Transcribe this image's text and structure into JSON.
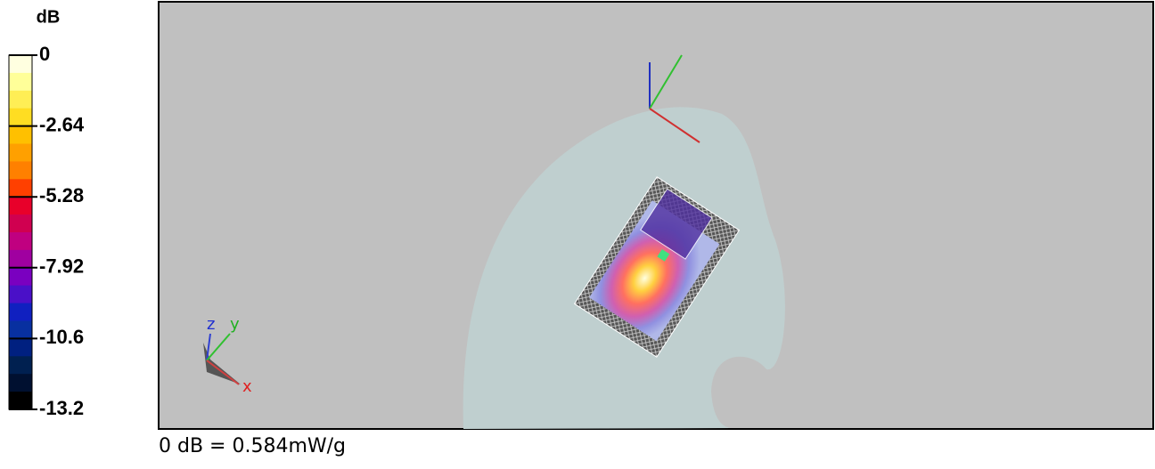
{
  "legend": {
    "title": "dB",
    "ticks": [
      "0",
      "-2.64",
      "-5.28",
      "-7.92",
      "-10.6",
      "-13.2"
    ]
  },
  "axes_labels": {
    "z": "z",
    "y": "y",
    "x": "x"
  },
  "footer": "0 dB = 0.584mW/g"
}
